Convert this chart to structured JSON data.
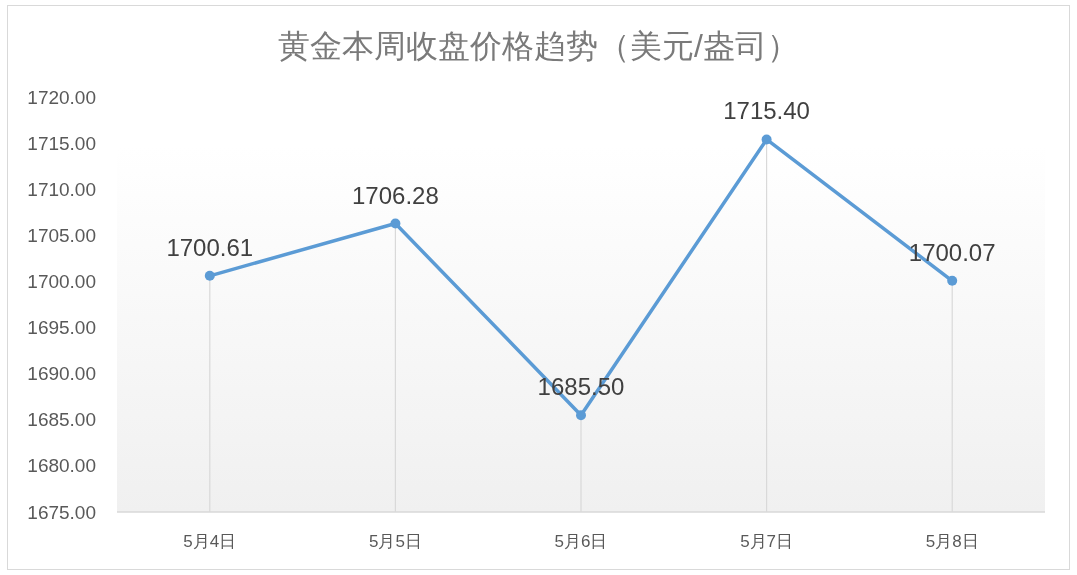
{
  "chart_data": {
    "type": "line",
    "title": "黄金本周收盘价格趋势（美元/盎司）",
    "categories": [
      "5月4日",
      "5月5日",
      "5月6日",
      "5月7日",
      "5月8日"
    ],
    "series": [
      {
        "color": "#5b9bd5",
        "values": [
          1700.61,
          1706.28,
          1685.5,
          1715.4,
          1700.07
        ],
        "value_labels": [
          "1700.61",
          "1706.28",
          "1685.50",
          "1715.40",
          "1700.07"
        ]
      }
    ],
    "ylim": [
      1675,
      1720
    ],
    "yticks": [
      {
        "value": 1675,
        "label": "1675.00"
      },
      {
        "value": 1680,
        "label": "1680.00"
      },
      {
        "value": 1685,
        "label": "1685.00"
      },
      {
        "value": 1690,
        "label": "1690.00"
      },
      {
        "value": 1695,
        "label": "1695.00"
      },
      {
        "value": 1700,
        "label": "1700.00"
      },
      {
        "value": 1705,
        "label": "1705.00"
      },
      {
        "value": 1710,
        "label": "1710.00"
      },
      {
        "value": 1715,
        "label": "1715.00"
      },
      {
        "value": 1720,
        "label": "1720.00"
      }
    ],
    "grid": "x",
    "marker": "circle",
    "line_style": "solid"
  }
}
